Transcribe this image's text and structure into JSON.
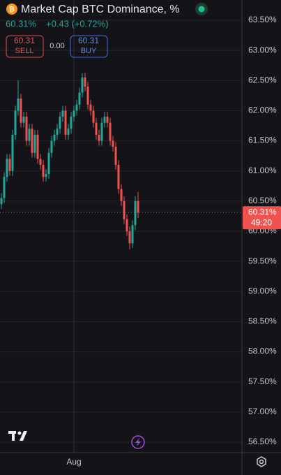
{
  "header": {
    "title": "Market Cap BTC Dominance, %",
    "price": "60.31%",
    "change": "+0.43 (+0.72%)",
    "sell_price": "60.31",
    "sell_label": "SELL",
    "spread": "0.00",
    "buy_price": "60.31",
    "buy_label": "BUY"
  },
  "chart_data": {
    "type": "candlestick",
    "categories": [
      null,
      null,
      null,
      null,
      null,
      null,
      null,
      null,
      null,
      null,
      null,
      null,
      null,
      null,
      null,
      null,
      null,
      null,
      null,
      null,
      null,
      null,
      null,
      null,
      null,
      null,
      "Aug",
      null,
      null,
      null,
      null,
      null,
      null,
      null,
      null,
      null,
      null,
      null,
      null,
      null,
      null,
      null,
      null,
      null,
      null,
      null,
      null,
      null,
      null,
      null
    ],
    "open": [
      60.45,
      60.55,
      60.9,
      61.2,
      61.0,
      61.6,
      62.0,
      62.2,
      61.8,
      61.9,
      61.5,
      61.7,
      61.3,
      61.6,
      61.2,
      61.1,
      60.9,
      60.95,
      61.3,
      61.5,
      61.6,
      61.7,
      61.9,
      62.0,
      61.6,
      61.7,
      61.9,
      62.0,
      62.1,
      62.3,
      62.55,
      62.4,
      62.1,
      62.0,
      61.8,
      61.6,
      61.5,
      61.8,
      61.9,
      61.8,
      61.5,
      61.4,
      61.1,
      60.7,
      60.5,
      60.2,
      60.0,
      59.8,
      60.1,
      60.5
    ],
    "high": [
      60.63,
      60.98,
      61.28,
      61.28,
      61.68,
      62.08,
      62.5,
      62.28,
      61.98,
      61.98,
      61.78,
      61.78,
      61.68,
      61.68,
      61.28,
      61.18,
      61.03,
      61.38,
      61.58,
      61.68,
      61.78,
      61.98,
      62.08,
      62.08,
      61.78,
      61.98,
      62.08,
      62.18,
      62.38,
      62.62,
      62.63,
      62.48,
      62.18,
      62.08,
      61.88,
      61.68,
      61.88,
      61.98,
      61.98,
      61.88,
      61.58,
      61.48,
      61.18,
      60.78,
      60.58,
      60.28,
      60.08,
      60.18,
      60.58,
      60.65
    ],
    "low": [
      60.37,
      60.47,
      60.82,
      60.92,
      60.92,
      61.52,
      61.92,
      61.72,
      61.72,
      61.42,
      61.42,
      61.22,
      61.22,
      61.12,
      61.02,
      60.82,
      60.82,
      60.87,
      61.22,
      61.42,
      61.52,
      61.62,
      61.82,
      61.52,
      61.52,
      61.62,
      61.82,
      61.92,
      62.02,
      62.22,
      62.32,
      62.02,
      61.92,
      61.72,
      61.52,
      61.42,
      61.42,
      61.72,
      61.72,
      61.42,
      61.32,
      61.02,
      60.62,
      60.42,
      60.12,
      59.92,
      59.7,
      59.72,
      60.02,
      60.22
    ],
    "close": [
      60.55,
      60.9,
      61.2,
      61.0,
      61.6,
      62.0,
      62.2,
      61.8,
      61.9,
      61.5,
      61.7,
      61.3,
      61.6,
      61.2,
      61.1,
      60.9,
      60.95,
      61.3,
      61.5,
      61.6,
      61.7,
      61.9,
      62.0,
      61.6,
      61.7,
      61.9,
      62.0,
      62.1,
      62.3,
      62.55,
      62.4,
      62.1,
      62.0,
      61.8,
      61.6,
      61.5,
      61.8,
      61.9,
      61.8,
      61.5,
      61.4,
      61.1,
      60.7,
      60.5,
      60.2,
      60.0,
      59.8,
      60.1,
      60.5,
      60.31
    ],
    "up_color": "#26a69a",
    "down_color": "#ef5350",
    "ylim": [
      56.4,
      63.6
    ],
    "yticks": [
      {
        "value": 56.5,
        "label": "56.50%"
      },
      {
        "value": 57,
        "label": "57.00%"
      },
      {
        "value": 57.5,
        "label": "57.50%"
      },
      {
        "value": 58,
        "label": "58.00%"
      },
      {
        "value": 58.5,
        "label": "58.50%"
      },
      {
        "value": 59,
        "label": "59.00%"
      },
      {
        "value": 59.5,
        "label": "59.50%"
      },
      {
        "value": 60,
        "label": "60.00%"
      },
      {
        "value": 60.5,
        "label": "60.50%"
      },
      {
        "value": 61,
        "label": "61.00%"
      },
      {
        "value": 61.5,
        "label": "61.50%"
      },
      {
        "value": 62,
        "label": "62.00%"
      },
      {
        "value": 62.5,
        "label": "62.50%"
      },
      {
        "value": 63,
        "label": "63.00%"
      },
      {
        "value": 63.5,
        "label": "63.50%"
      }
    ],
    "grid": true,
    "last_price": {
      "value": 60.31,
      "label": "60.31%"
    },
    "countdown": "49:20"
  }
}
